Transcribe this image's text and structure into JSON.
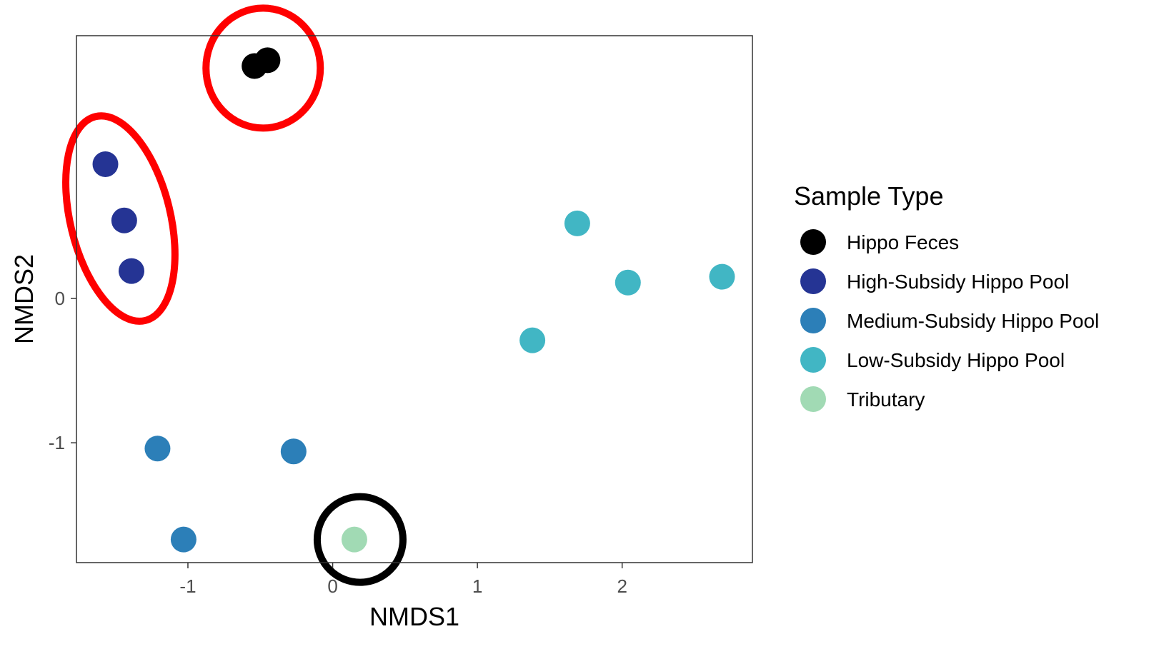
{
  "chart_data": {
    "type": "scatter",
    "xlabel": "NMDS1",
    "ylabel": "NMDS2",
    "xlim": [
      -1.77,
      2.9
    ],
    "ylim": [
      -1.83,
      1.82
    ],
    "x_ticks": [
      -1,
      0,
      1,
      2
    ],
    "y_ticks": [
      -1,
      0
    ],
    "x_tick_labels": [
      "-1",
      "0",
      "1",
      "2"
    ],
    "y_tick_labels": [
      "-1",
      "0"
    ],
    "grid": false,
    "legend": {
      "title": "Sample Type",
      "position": "right"
    },
    "series": [
      {
        "name": "Hippo Feces",
        "color": "#000000",
        "points": [
          {
            "x": -0.45,
            "y": 1.65
          },
          {
            "x": -0.54,
            "y": 1.61
          }
        ]
      },
      {
        "name": "High-Subsidy Hippo Pool",
        "color": "#253494",
        "points": [
          {
            "x": -1.57,
            "y": 0.93
          },
          {
            "x": -1.44,
            "y": 0.54
          },
          {
            "x": -1.39,
            "y": 0.19
          }
        ]
      },
      {
        "name": "Medium-Subsidy Hippo Pool",
        "color": "#2c7fb8",
        "points": [
          {
            "x": -1.21,
            "y": -1.04
          },
          {
            "x": -0.27,
            "y": -1.06
          },
          {
            "x": -1.03,
            "y": -1.67
          }
        ]
      },
      {
        "name": "Low-Subsidy Hippo Pool",
        "color": "#41b6c4",
        "points": [
          {
            "x": 1.69,
            "y": 0.52
          },
          {
            "x": 2.04,
            "y": 0.11
          },
          {
            "x": 2.69,
            "y": 0.15
          },
          {
            "x": 1.38,
            "y": -0.29
          }
        ]
      },
      {
        "name": "Tributary",
        "color": "#a1dab4",
        "points": [
          {
            "x": 0.15,
            "y": -1.67
          }
        ]
      }
    ],
    "annotations": [
      {
        "shape": "ellipse",
        "color": "#ff0000",
        "encloses": "Hippo Feces"
      },
      {
        "shape": "ellipse",
        "color": "#ff0000",
        "encloses": "High-Subsidy Hippo Pool"
      },
      {
        "shape": "ellipse",
        "color": "#000000",
        "encloses": "Tributary"
      }
    ]
  }
}
